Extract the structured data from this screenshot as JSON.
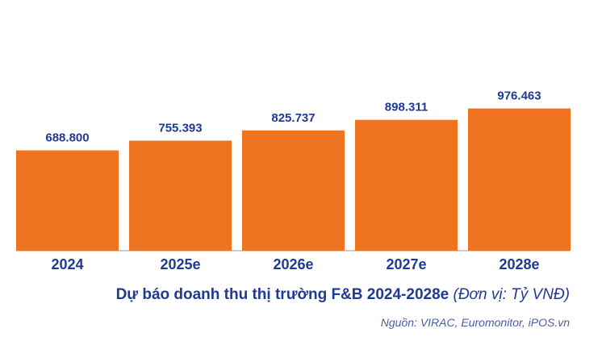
{
  "chart_data": {
    "type": "bar",
    "title": "Dự báo doanh thu thị trường F&B 2024-2028e",
    "unit_label": "(Đơn vị: Tỷ VNĐ)",
    "source": "Nguồn: VIRAC, Euromonitor, iPOS.vn",
    "categories": [
      "2024",
      "2025e",
      "2026e",
      "2027e",
      "2028e"
    ],
    "values": [
      688.8,
      755.393,
      825.737,
      898.311,
      976.463
    ],
    "value_labels": [
      "688.800",
      "755.393",
      "825.737",
      "898.311",
      "976.463"
    ],
    "xlabel": "",
    "ylabel": "",
    "ylim": [
      0,
      1000
    ],
    "grid": false,
    "legend": "none"
  },
  "colors": {
    "bar": "#f07320",
    "text": "#1f3a93",
    "source_text": "#4a5fa0",
    "axis": "#9a9a9a"
  }
}
